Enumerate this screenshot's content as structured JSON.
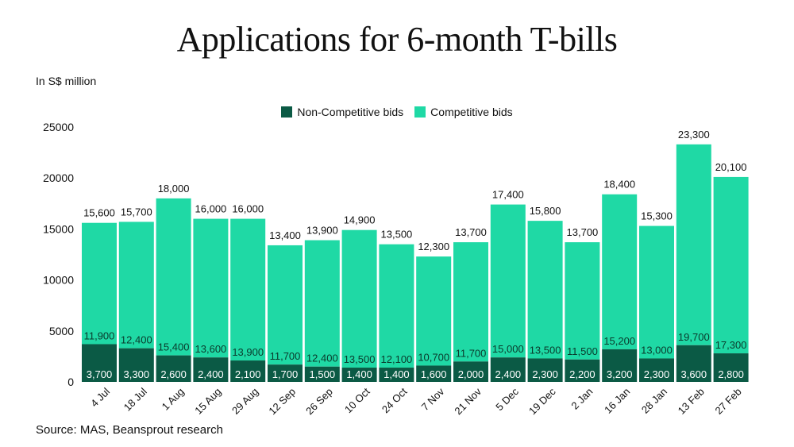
{
  "chart_data": {
    "type": "bar",
    "stacked": true,
    "title": "Applications for 6-month T-bills",
    "ylabel": "In S$ million",
    "source": "Source: MAS, Beansprout research",
    "ylim": [
      0,
      25000
    ],
    "yticks": [
      0,
      5000,
      10000,
      15000,
      20000,
      25000
    ],
    "grid": false,
    "legend_position": "top-center",
    "categories": [
      "4 Jul",
      "18 Jul",
      "1 Aug",
      "15 Aug",
      "29 Aug",
      "12 Sep",
      "26 Sep",
      "10 Oct",
      "24 Oct",
      "7 Nov",
      "21 Nov",
      "5 Dec",
      "19 Dec",
      "2 Jan",
      "16 Jan",
      "28 Jan",
      "13 Feb",
      "27 Feb"
    ],
    "series": [
      {
        "name": "Non-Competitive bids",
        "color": "#0b5a45",
        "values": [
          3700,
          3300,
          2600,
          2400,
          2100,
          1700,
          1500,
          1400,
          1400,
          1600,
          2000,
          2400,
          2300,
          2200,
          3200,
          2300,
          3600,
          2800
        ]
      },
      {
        "name": "Competitive bids",
        "color": "#1fd9a5",
        "values": [
          11900,
          12400,
          15400,
          13600,
          13900,
          11700,
          12400,
          13500,
          12100,
          10700,
          11700,
          15000,
          13500,
          11500,
          15200,
          13000,
          19700,
          17300
        ]
      }
    ],
    "totals": [
      15600,
      15700,
      18000,
      16000,
      16000,
      13400,
      13900,
      14900,
      13500,
      12300,
      13700,
      17400,
      15800,
      13700,
      18400,
      15300,
      23300,
      20100
    ]
  }
}
